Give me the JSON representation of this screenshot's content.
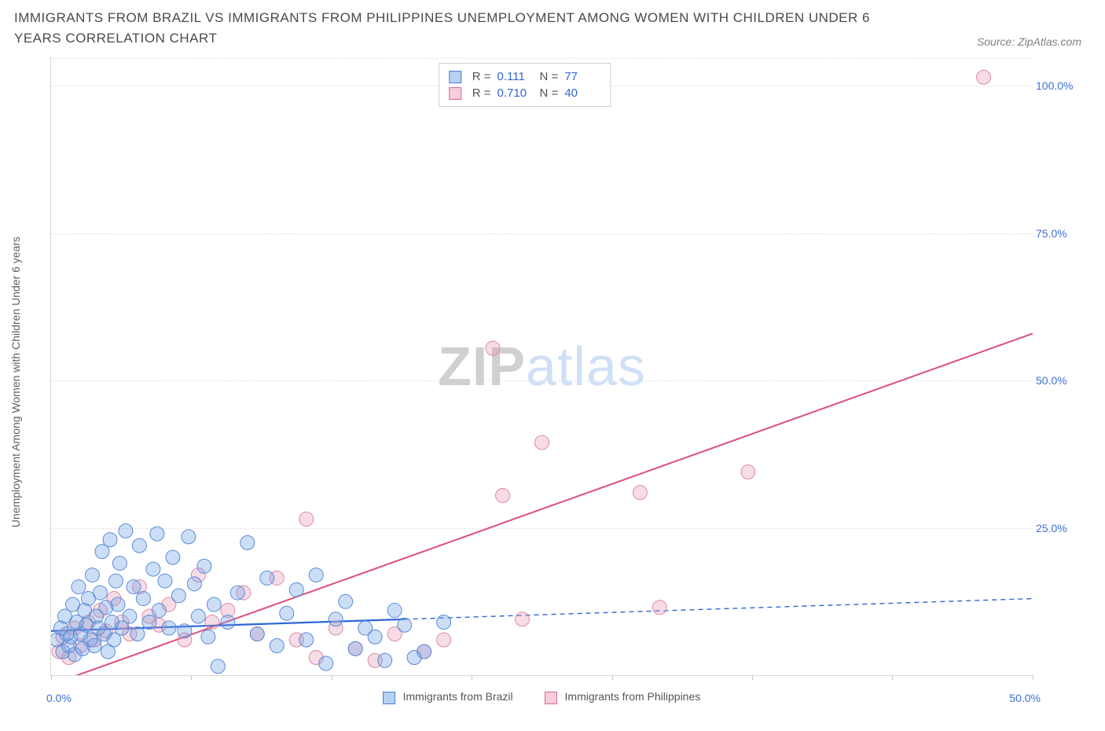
{
  "title": "IMMIGRANTS FROM BRAZIL VS IMMIGRANTS FROM PHILIPPINES UNEMPLOYMENT AMONG WOMEN WITH CHILDREN UNDER 6 YEARS CORRELATION CHART",
  "source": "Source: ZipAtlas.com",
  "ylabel": "Unemployment Among Women with Children Under 6 years",
  "watermark_zip": "ZIP",
  "watermark_atlas": "atlas",
  "series1": {
    "name": "Immigrants from Brazil",
    "swatch_fill": "#b7d1f3",
    "swatch_stroke": "#4a7fd6",
    "R_label": "R =",
    "R": "0.111",
    "N_label": "N =",
    "N": "77",
    "point_fill": "rgba(110,160,230,0.35)",
    "point_stroke": "#5a8cd8",
    "line_color": "#2f66d6",
    "line_solid": {
      "x1": 0,
      "y1": 7.5,
      "x2": 18,
      "y2": 9.5
    },
    "line_dash": {
      "x1": 18,
      "y1": 9.5,
      "x2": 50,
      "y2": 13.0
    },
    "points": [
      [
        0.3,
        6.0
      ],
      [
        0.5,
        8.0
      ],
      [
        0.6,
        4.0
      ],
      [
        0.7,
        10.0
      ],
      [
        0.8,
        7.0
      ],
      [
        0.9,
        5.0
      ],
      [
        1.0,
        6.5
      ],
      [
        1.1,
        12.0
      ],
      [
        1.2,
        3.5
      ],
      [
        1.3,
        9.0
      ],
      [
        1.4,
        15.0
      ],
      [
        1.5,
        7.0
      ],
      [
        1.6,
        4.5
      ],
      [
        1.7,
        11.0
      ],
      [
        1.8,
        8.5
      ],
      [
        1.9,
        13.0
      ],
      [
        2.0,
        6.0
      ],
      [
        2.1,
        17.0
      ],
      [
        2.2,
        5.0
      ],
      [
        2.3,
        10.0
      ],
      [
        2.4,
        8.0
      ],
      [
        2.5,
        14.0
      ],
      [
        2.6,
        21.0
      ],
      [
        2.7,
        7.0
      ],
      [
        2.8,
        11.5
      ],
      [
        2.9,
        4.0
      ],
      [
        3.0,
        23.0
      ],
      [
        3.1,
        9.0
      ],
      [
        3.2,
        6.0
      ],
      [
        3.3,
        16.0
      ],
      [
        3.4,
        12.0
      ],
      [
        3.5,
        19.0
      ],
      [
        3.6,
        8.0
      ],
      [
        3.8,
        24.5
      ],
      [
        4.0,
        10.0
      ],
      [
        4.2,
        15.0
      ],
      [
        4.4,
        7.0
      ],
      [
        4.5,
        22.0
      ],
      [
        4.7,
        13.0
      ],
      [
        5.0,
        9.0
      ],
      [
        5.2,
        18.0
      ],
      [
        5.4,
        24.0
      ],
      [
        5.5,
        11.0
      ],
      [
        5.8,
        16.0
      ],
      [
        6.0,
        8.0
      ],
      [
        6.2,
        20.0
      ],
      [
        6.5,
        13.5
      ],
      [
        6.8,
        7.5
      ],
      [
        7.0,
        23.5
      ],
      [
        7.3,
        15.5
      ],
      [
        7.5,
        10.0
      ],
      [
        7.8,
        18.5
      ],
      [
        8.0,
        6.5
      ],
      [
        8.3,
        12.0
      ],
      [
        8.5,
        1.5
      ],
      [
        9.0,
        9.0
      ],
      [
        9.5,
        14.0
      ],
      [
        10.0,
        22.5
      ],
      [
        10.5,
        7.0
      ],
      [
        11.0,
        16.5
      ],
      [
        11.5,
        5.0
      ],
      [
        12.0,
        10.5
      ],
      [
        12.5,
        14.5
      ],
      [
        13.0,
        6.0
      ],
      [
        13.5,
        17.0
      ],
      [
        14.0,
        2.0
      ],
      [
        14.5,
        9.5
      ],
      [
        15.0,
        12.5
      ],
      [
        15.5,
        4.5
      ],
      [
        16.0,
        8.0
      ],
      [
        16.5,
        6.5
      ],
      [
        17.0,
        2.5
      ],
      [
        17.5,
        11.0
      ],
      [
        18.0,
        8.5
      ],
      [
        19.0,
        4.0
      ],
      [
        20.0,
        9.0
      ],
      [
        18.5,
        3.0
      ]
    ]
  },
  "series2": {
    "name": "Immigrants from Philippines",
    "swatch_fill": "#f6cdd8",
    "swatch_stroke": "#d66a8e",
    "R_label": "R =",
    "R": "0.710",
    "N_label": "N =",
    "N": "40",
    "point_fill": "rgba(230,140,170,0.30)",
    "point_stroke": "#dd8aa6",
    "line_color": "#dd4f7c",
    "line": {
      "x1": 0.5,
      "y1": -1.0,
      "x2": 50,
      "y2": 58.0
    },
    "points": [
      [
        0.4,
        4.0
      ],
      [
        0.6,
        6.5
      ],
      [
        0.9,
        3.0
      ],
      [
        1.2,
        8.0
      ],
      [
        1.5,
        5.0
      ],
      [
        1.9,
        9.0
      ],
      [
        2.2,
        6.0
      ],
      [
        2.5,
        11.0
      ],
      [
        2.8,
        7.5
      ],
      [
        3.2,
        13.0
      ],
      [
        3.6,
        9.0
      ],
      [
        4.0,
        7.0
      ],
      [
        4.5,
        15.0
      ],
      [
        5.0,
        10.0
      ],
      [
        5.5,
        8.5
      ],
      [
        6.0,
        12.0
      ],
      [
        6.8,
        6.0
      ],
      [
        7.5,
        17.0
      ],
      [
        8.2,
        9.0
      ],
      [
        9.0,
        11.0
      ],
      [
        9.8,
        14.0
      ],
      [
        10.5,
        7.0
      ],
      [
        11.5,
        16.5
      ],
      [
        12.5,
        6.0
      ],
      [
        13.0,
        26.5
      ],
      [
        13.5,
        3.0
      ],
      [
        14.5,
        8.0
      ],
      [
        15.5,
        4.5
      ],
      [
        16.5,
        2.5
      ],
      [
        17.5,
        7.0
      ],
      [
        19.0,
        4.0
      ],
      [
        20.0,
        6.0
      ],
      [
        22.5,
        55.5
      ],
      [
        23.0,
        30.5
      ],
      [
        24.0,
        9.5
      ],
      [
        25.0,
        39.5
      ],
      [
        30.0,
        31.0
      ],
      [
        31.0,
        11.5
      ],
      [
        35.5,
        34.5
      ],
      [
        47.5,
        101.5
      ]
    ]
  },
  "axes": {
    "xlim": [
      0,
      50
    ],
    "ylim": [
      0,
      105
    ],
    "y_grid": [
      25,
      50,
      75,
      100
    ],
    "y_ticklabels": [
      "25.0%",
      "50.0%",
      "75.0%",
      "100.0%"
    ],
    "x_tick_positions": [
      0,
      7.14,
      14.28,
      21.42,
      28.57,
      35.71,
      42.85,
      50
    ],
    "x0_label": "0.0%",
    "x50_label": "50.0%",
    "grid_color": "#e4e4e4",
    "axis_color": "#d8d8d8",
    "ticklabel_color": "#3f6fd6",
    "background": "#ffffff",
    "axis_label_fontsize": 14
  },
  "marker_radius": 9
}
